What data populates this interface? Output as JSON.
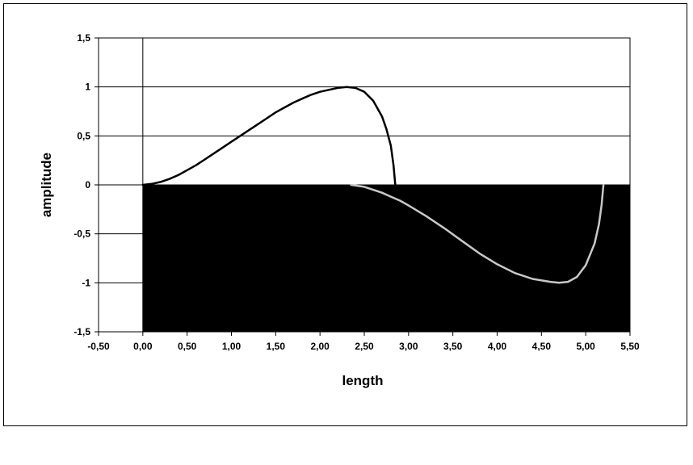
{
  "chart_data": {
    "type": "line",
    "xlabel": "length",
    "ylabel": "amplitude",
    "xlim": [
      -0.5,
      5.5
    ],
    "ylim": [
      -1.5,
      1.5
    ],
    "x_ticks": [
      "-0,50",
      "0,00",
      "0,50",
      "1,00",
      "1,50",
      "2,00",
      "2,50",
      "3,00",
      "3,50",
      "4,00",
      "4,50",
      "5,00",
      "5,50"
    ],
    "x_tick_values": [
      -0.5,
      0,
      0.5,
      1,
      1.5,
      2,
      2.5,
      3,
      3.5,
      4,
      4.5,
      5,
      5.5
    ],
    "y_ticks": [
      "1,5",
      "1",
      "0,5",
      "0",
      "-0,5",
      "-1",
      "-1,5"
    ],
    "y_tick_values": [
      1.5,
      1,
      0.5,
      0,
      -0.5,
      -1,
      -1.5
    ],
    "grid": "horizontal",
    "filled_region": {
      "x": [
        0,
        5.5
      ],
      "y": [
        -1.5,
        0
      ],
      "color": "#000000"
    },
    "series": [
      {
        "color": "#000000",
        "x": [
          0,
          0.1,
          0.2,
          0.3,
          0.4,
          0.5,
          0.6,
          0.7,
          0.8,
          0.9,
          1.0,
          1.1,
          1.2,
          1.3,
          1.4,
          1.5,
          1.6,
          1.7,
          1.8,
          1.9,
          2.0,
          2.1,
          2.2,
          2.3,
          2.4,
          2.5,
          2.6,
          2.7,
          2.75,
          2.8,
          2.83,
          2.85
        ],
        "y": [
          0,
          0.01,
          0.03,
          0.06,
          0.1,
          0.15,
          0.2,
          0.26,
          0.32,
          0.38,
          0.44,
          0.5,
          0.56,
          0.62,
          0.68,
          0.74,
          0.79,
          0.84,
          0.88,
          0.92,
          0.95,
          0.97,
          0.99,
          1.0,
          0.99,
          0.95,
          0.86,
          0.7,
          0.57,
          0.4,
          0.2,
          0.0
        ]
      },
      {
        "color": "#c8c8c8",
        "x": [
          2.35,
          2.5,
          2.6,
          2.7,
          2.8,
          2.9,
          3.0,
          3.2,
          3.4,
          3.6,
          3.8,
          4.0,
          4.2,
          4.4,
          4.6,
          4.7,
          4.8,
          4.9,
          5.0,
          5.1,
          5.15,
          5.18,
          5.2
        ],
        "y": [
          0.0,
          -0.02,
          -0.05,
          -0.08,
          -0.12,
          -0.16,
          -0.21,
          -0.32,
          -0.44,
          -0.57,
          -0.7,
          -0.81,
          -0.9,
          -0.96,
          -0.99,
          -1.0,
          -0.99,
          -0.94,
          -0.82,
          -0.6,
          -0.4,
          -0.2,
          0.0
        ]
      }
    ]
  }
}
